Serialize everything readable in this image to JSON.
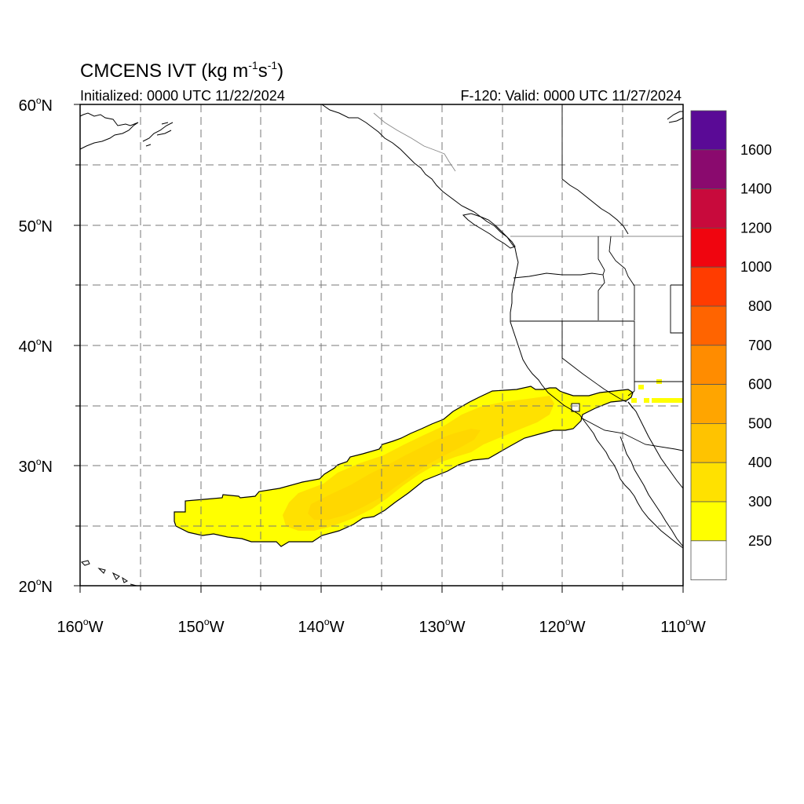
{
  "title": {
    "main": "CMCENS IVT (kg m",
    "exp1": "-1",
    "mid": "s",
    "exp2": "-1",
    "close": ")"
  },
  "initialized": "Initialized: 0000 UTC 11/22/2024",
  "valid": "F-120: Valid: 0000 UTC 11/27/2024",
  "lat_labels": [
    {
      "deg": "60",
      "sym": "o",
      "hemi": "N"
    },
    {
      "deg": "50",
      "sym": "o",
      "hemi": "N"
    },
    {
      "deg": "40",
      "sym": "o",
      "hemi": "N"
    },
    {
      "deg": "30",
      "sym": "o",
      "hemi": "N"
    },
    {
      "deg": "20",
      "sym": "o",
      "hemi": "N"
    }
  ],
  "lon_labels": [
    {
      "deg": "160",
      "sym": "o",
      "hemi": "W"
    },
    {
      "deg": "150",
      "sym": "o",
      "hemi": "W"
    },
    {
      "deg": "140",
      "sym": "o",
      "hemi": "W"
    },
    {
      "deg": "130",
      "sym": "o",
      "hemi": "W"
    },
    {
      "deg": "120",
      "sym": "o",
      "hemi": "W"
    },
    {
      "deg": "110",
      "sym": "o",
      "hemi": "W"
    }
  ],
  "colorbar": {
    "labels": [
      "1600",
      "1400",
      "1200",
      "1000",
      "800",
      "700",
      "600",
      "500",
      "400",
      "300",
      "250"
    ],
    "colors": [
      "#5a0a96",
      "#8a0a6e",
      "#c80a3c",
      "#f0050f",
      "#ff3c00",
      "#ff6400",
      "#ff8c00",
      "#ffa500",
      "#ffc300",
      "#ffe100",
      "#ffff00",
      "#ffffff"
    ]
  },
  "ivt_field_colors": {
    "light": "#ffff00",
    "mid": "#ffe100",
    "core": "#ffd700"
  }
}
